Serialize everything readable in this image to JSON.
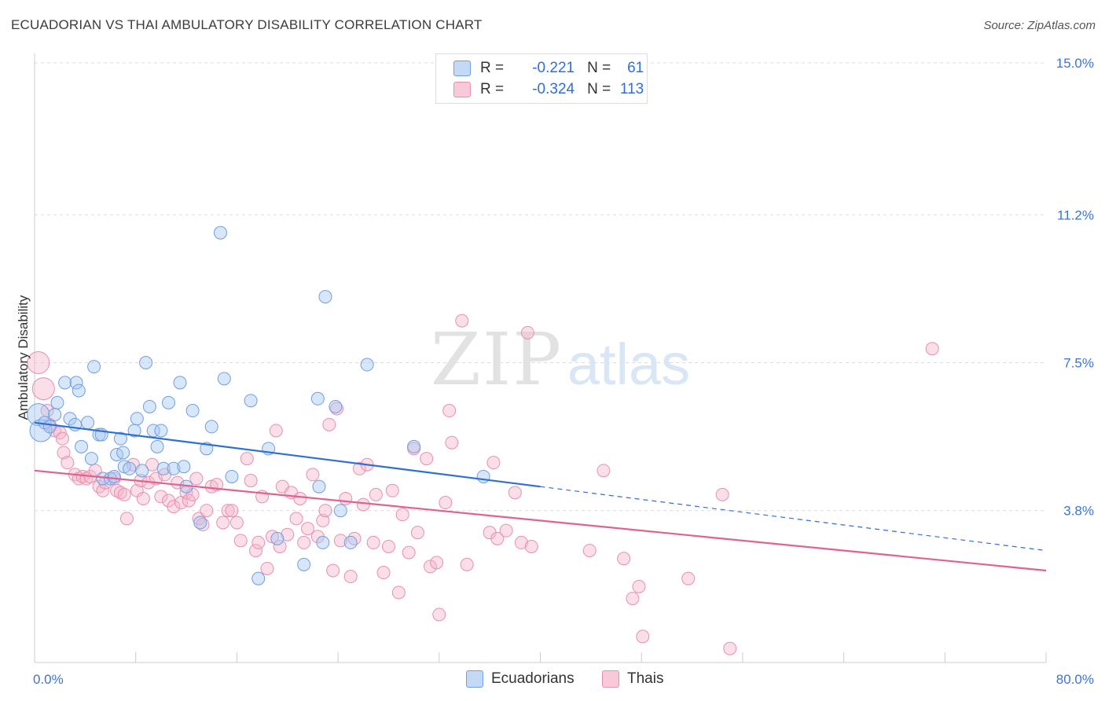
{
  "title": "ECUADORIAN VS THAI AMBULATORY DISABILITY CORRELATION CHART",
  "source": "Source: ZipAtlas.com",
  "watermark": {
    "zip": "ZIP",
    "atlas": "atlas"
  },
  "legend": {
    "ecuadorians": {
      "r_label": "R =",
      "r_value": "-0.221",
      "n_label": "N =",
      "n_value": "61"
    },
    "thais": {
      "r_label": "R =",
      "r_value": "-0.324",
      "n_label": "N =",
      "n_value": "113"
    }
  },
  "colors": {
    "ecuadorians_fill": "#a9c8f2",
    "ecuadorians_stroke": "#6f9fe0",
    "ecuadorians_line": "#2d6fd4",
    "thais_fill": "#f4b6cb",
    "thais_stroke": "#e98fae",
    "thais_line": "#e0628f",
    "tick_label": "#3a74d6",
    "grid": "#dcdcdc"
  },
  "chart_data": {
    "type": "scatter",
    "ylabel": "Ambulatory Disability",
    "xlim": [
      0,
      80
    ],
    "ylim": [
      0,
      15
    ],
    "x_tick_labels": [
      "0.0%",
      "80.0%"
    ],
    "y_ticks": [
      3.8,
      7.5,
      11.2,
      15.0
    ],
    "y_tick_labels": [
      "3.8%",
      "7.5%",
      "11.2%",
      "15.0%"
    ],
    "grid": true,
    "legend_position": "bottom-center",
    "series": [
      {
        "name": "Ecuadorians",
        "trend": {
          "x": [
            0,
            40
          ],
          "y": [
            6.0,
            4.4
          ],
          "dashed_extension_to": [
            80,
            2.8
          ]
        },
        "points": [
          {
            "x": 0.3,
            "y": 6.2,
            "big": true
          },
          {
            "x": 0.5,
            "y": 5.8,
            "big": true
          },
          {
            "x": 0.8,
            "y": 6.0
          },
          {
            "x": 1.2,
            "y": 5.9
          },
          {
            "x": 1.6,
            "y": 6.2
          },
          {
            "x": 1.8,
            "y": 6.5
          },
          {
            "x": 2.4,
            "y": 7.0
          },
          {
            "x": 2.8,
            "y": 6.1
          },
          {
            "x": 3.2,
            "y": 5.95
          },
          {
            "x": 3.3,
            "y": 7.0
          },
          {
            "x": 3.5,
            "y": 6.8
          },
          {
            "x": 3.7,
            "y": 5.4
          },
          {
            "x": 4.2,
            "y": 6.0
          },
          {
            "x": 4.5,
            "y": 5.1
          },
          {
            "x": 4.7,
            "y": 7.4
          },
          {
            "x": 5.1,
            "y": 5.7
          },
          {
            "x": 5.3,
            "y": 5.7
          },
          {
            "x": 5.4,
            "y": 4.6
          },
          {
            "x": 6.0,
            "y": 4.6
          },
          {
            "x": 6.3,
            "y": 4.65
          },
          {
            "x": 6.5,
            "y": 5.2
          },
          {
            "x": 6.8,
            "y": 5.6
          },
          {
            "x": 7.0,
            "y": 5.25
          },
          {
            "x": 7.1,
            "y": 4.9
          },
          {
            "x": 7.5,
            "y": 4.85
          },
          {
            "x": 7.9,
            "y": 5.8
          },
          {
            "x": 8.1,
            "y": 6.1
          },
          {
            "x": 8.5,
            "y": 4.8
          },
          {
            "x": 8.8,
            "y": 7.5
          },
          {
            "x": 9.1,
            "y": 6.4
          },
          {
            "x": 9.4,
            "y": 5.8
          },
          {
            "x": 9.7,
            "y": 5.4
          },
          {
            "x": 10.0,
            "y": 5.8
          },
          {
            "x": 10.2,
            "y": 4.85
          },
          {
            "x": 10.6,
            "y": 6.5
          },
          {
            "x": 11.0,
            "y": 4.85
          },
          {
            "x": 11.5,
            "y": 7.0
          },
          {
            "x": 11.8,
            "y": 4.9
          },
          {
            "x": 12.0,
            "y": 4.4
          },
          {
            "x": 12.5,
            "y": 6.3
          },
          {
            "x": 13.1,
            "y": 3.5
          },
          {
            "x": 13.6,
            "y": 5.35
          },
          {
            "x": 14.0,
            "y": 5.9
          },
          {
            "x": 14.7,
            "y": 10.75
          },
          {
            "x": 15.0,
            "y": 7.1
          },
          {
            "x": 15.6,
            "y": 4.65
          },
          {
            "x": 17.1,
            "y": 6.55
          },
          {
            "x": 17.7,
            "y": 2.1
          },
          {
            "x": 18.5,
            "y": 5.35
          },
          {
            "x": 19.2,
            "y": 3.1
          },
          {
            "x": 21.3,
            "y": 2.45
          },
          {
            "x": 22.4,
            "y": 6.6
          },
          {
            "x": 22.5,
            "y": 4.4
          },
          {
            "x": 22.8,
            "y": 3.0
          },
          {
            "x": 23.0,
            "y": 9.15
          },
          {
            "x": 23.8,
            "y": 6.4
          },
          {
            "x": 24.2,
            "y": 3.8
          },
          {
            "x": 25.0,
            "y": 3.0
          },
          {
            "x": 26.3,
            "y": 7.45
          },
          {
            "x": 30.0,
            "y": 5.4
          },
          {
            "x": 35.5,
            "y": 4.65
          }
        ]
      },
      {
        "name": "Thais",
        "trend": {
          "x": [
            0,
            80
          ],
          "y": [
            4.8,
            2.3
          ]
        },
        "points": [
          {
            "x": 0.3,
            "y": 7.5,
            "big": true
          },
          {
            "x": 0.7,
            "y": 6.85,
            "big": true
          },
          {
            "x": 1.0,
            "y": 6.3
          },
          {
            "x": 1.2,
            "y": 5.95
          },
          {
            "x": 1.6,
            "y": 5.8
          },
          {
            "x": 2.0,
            "y": 5.75
          },
          {
            "x": 2.2,
            "y": 5.6
          },
          {
            "x": 2.3,
            "y": 5.25
          },
          {
            "x": 2.6,
            "y": 5.0
          },
          {
            "x": 3.2,
            "y": 4.7
          },
          {
            "x": 3.5,
            "y": 4.6
          },
          {
            "x": 3.8,
            "y": 4.65
          },
          {
            "x": 4.1,
            "y": 4.6
          },
          {
            "x": 4.4,
            "y": 4.65
          },
          {
            "x": 4.8,
            "y": 4.8
          },
          {
            "x": 5.1,
            "y": 4.4
          },
          {
            "x": 5.4,
            "y": 4.3
          },
          {
            "x": 5.6,
            "y": 4.5
          },
          {
            "x": 6.3,
            "y": 4.6
          },
          {
            "x": 6.5,
            "y": 4.3
          },
          {
            "x": 6.8,
            "y": 4.25
          },
          {
            "x": 7.1,
            "y": 4.2
          },
          {
            "x": 7.3,
            "y": 3.6
          },
          {
            "x": 7.8,
            "y": 4.95
          },
          {
            "x": 8.1,
            "y": 4.3
          },
          {
            "x": 8.4,
            "y": 4.55
          },
          {
            "x": 8.6,
            "y": 4.1
          },
          {
            "x": 9.0,
            "y": 4.5
          },
          {
            "x": 9.3,
            "y": 4.95
          },
          {
            "x": 9.6,
            "y": 4.6
          },
          {
            "x": 10.0,
            "y": 4.15
          },
          {
            "x": 10.3,
            "y": 4.7
          },
          {
            "x": 10.6,
            "y": 4.05
          },
          {
            "x": 11.0,
            "y": 3.9
          },
          {
            "x": 11.3,
            "y": 4.5
          },
          {
            "x": 11.6,
            "y": 4.0
          },
          {
            "x": 12.0,
            "y": 4.25
          },
          {
            "x": 12.2,
            "y": 4.05
          },
          {
            "x": 12.5,
            "y": 4.2
          },
          {
            "x": 12.8,
            "y": 4.6
          },
          {
            "x": 13.0,
            "y": 3.6
          },
          {
            "x": 13.3,
            "y": 3.45
          },
          {
            "x": 13.6,
            "y": 3.8
          },
          {
            "x": 14.0,
            "y": 4.4
          },
          {
            "x": 14.4,
            "y": 4.45
          },
          {
            "x": 14.9,
            "y": 3.5
          },
          {
            "x": 15.3,
            "y": 3.8
          },
          {
            "x": 15.6,
            "y": 3.8
          },
          {
            "x": 16.0,
            "y": 3.5
          },
          {
            "x": 16.3,
            "y": 3.05
          },
          {
            "x": 16.8,
            "y": 5.1
          },
          {
            "x": 17.1,
            "y": 4.55
          },
          {
            "x": 17.5,
            "y": 2.8
          },
          {
            "x": 17.7,
            "y": 3.0
          },
          {
            "x": 18.0,
            "y": 4.15
          },
          {
            "x": 18.4,
            "y": 2.35
          },
          {
            "x": 18.8,
            "y": 3.15
          },
          {
            "x": 19.1,
            "y": 5.8
          },
          {
            "x": 19.4,
            "y": 2.9
          },
          {
            "x": 19.6,
            "y": 4.4
          },
          {
            "x": 20.0,
            "y": 3.2
          },
          {
            "x": 20.3,
            "y": 4.25
          },
          {
            "x": 20.7,
            "y": 3.6
          },
          {
            "x": 21.0,
            "y": 4.1
          },
          {
            "x": 21.3,
            "y": 3.0
          },
          {
            "x": 21.6,
            "y": 3.35
          },
          {
            "x": 22.0,
            "y": 4.7
          },
          {
            "x": 22.4,
            "y": 3.15
          },
          {
            "x": 22.8,
            "y": 3.55
          },
          {
            "x": 23.0,
            "y": 3.8
          },
          {
            "x": 23.3,
            "y": 5.95
          },
          {
            "x": 23.6,
            "y": 2.3
          },
          {
            "x": 23.9,
            "y": 6.35
          },
          {
            "x": 24.2,
            "y": 3.05
          },
          {
            "x": 24.6,
            "y": 4.1
          },
          {
            "x": 25.0,
            "y": 2.15
          },
          {
            "x": 25.3,
            "y": 3.1
          },
          {
            "x": 25.7,
            "y": 4.85
          },
          {
            "x": 26.0,
            "y": 3.95
          },
          {
            "x": 26.3,
            "y": 4.95
          },
          {
            "x": 26.8,
            "y": 3.0
          },
          {
            "x": 27.0,
            "y": 4.2
          },
          {
            "x": 27.6,
            "y": 2.25
          },
          {
            "x": 28.0,
            "y": 2.9
          },
          {
            "x": 28.3,
            "y": 4.3
          },
          {
            "x": 28.8,
            "y": 1.75
          },
          {
            "x": 29.1,
            "y": 3.7
          },
          {
            "x": 29.6,
            "y": 2.75
          },
          {
            "x": 30.0,
            "y": 5.35
          },
          {
            "x": 30.3,
            "y": 3.25
          },
          {
            "x": 31.0,
            "y": 5.1
          },
          {
            "x": 31.3,
            "y": 2.4
          },
          {
            "x": 31.8,
            "y": 2.5
          },
          {
            "x": 32.0,
            "y": 1.2
          },
          {
            "x": 32.5,
            "y": 4.0
          },
          {
            "x": 32.8,
            "y": 6.3
          },
          {
            "x": 33.0,
            "y": 5.5
          },
          {
            "x": 33.8,
            "y": 8.55
          },
          {
            "x": 34.2,
            "y": 2.45
          },
          {
            "x": 36.0,
            "y": 3.25
          },
          {
            "x": 36.3,
            "y": 5.0
          },
          {
            "x": 36.6,
            "y": 3.1
          },
          {
            "x": 37.3,
            "y": 3.3
          },
          {
            "x": 38.0,
            "y": 4.25
          },
          {
            "x": 38.5,
            "y": 3.0
          },
          {
            "x": 39.0,
            "y": 8.25
          },
          {
            "x": 39.3,
            "y": 2.9
          },
          {
            "x": 43.9,
            "y": 2.8
          },
          {
            "x": 45.0,
            "y": 4.8
          },
          {
            "x": 46.6,
            "y": 2.6
          },
          {
            "x": 47.3,
            "y": 1.6
          },
          {
            "x": 47.8,
            "y": 1.9
          },
          {
            "x": 48.1,
            "y": 0.65
          },
          {
            "x": 51.7,
            "y": 2.1
          },
          {
            "x": 54.4,
            "y": 4.2
          },
          {
            "x": 55.0,
            "y": 0.35
          },
          {
            "x": 71.0,
            "y": 7.85
          }
        ]
      }
    ]
  }
}
